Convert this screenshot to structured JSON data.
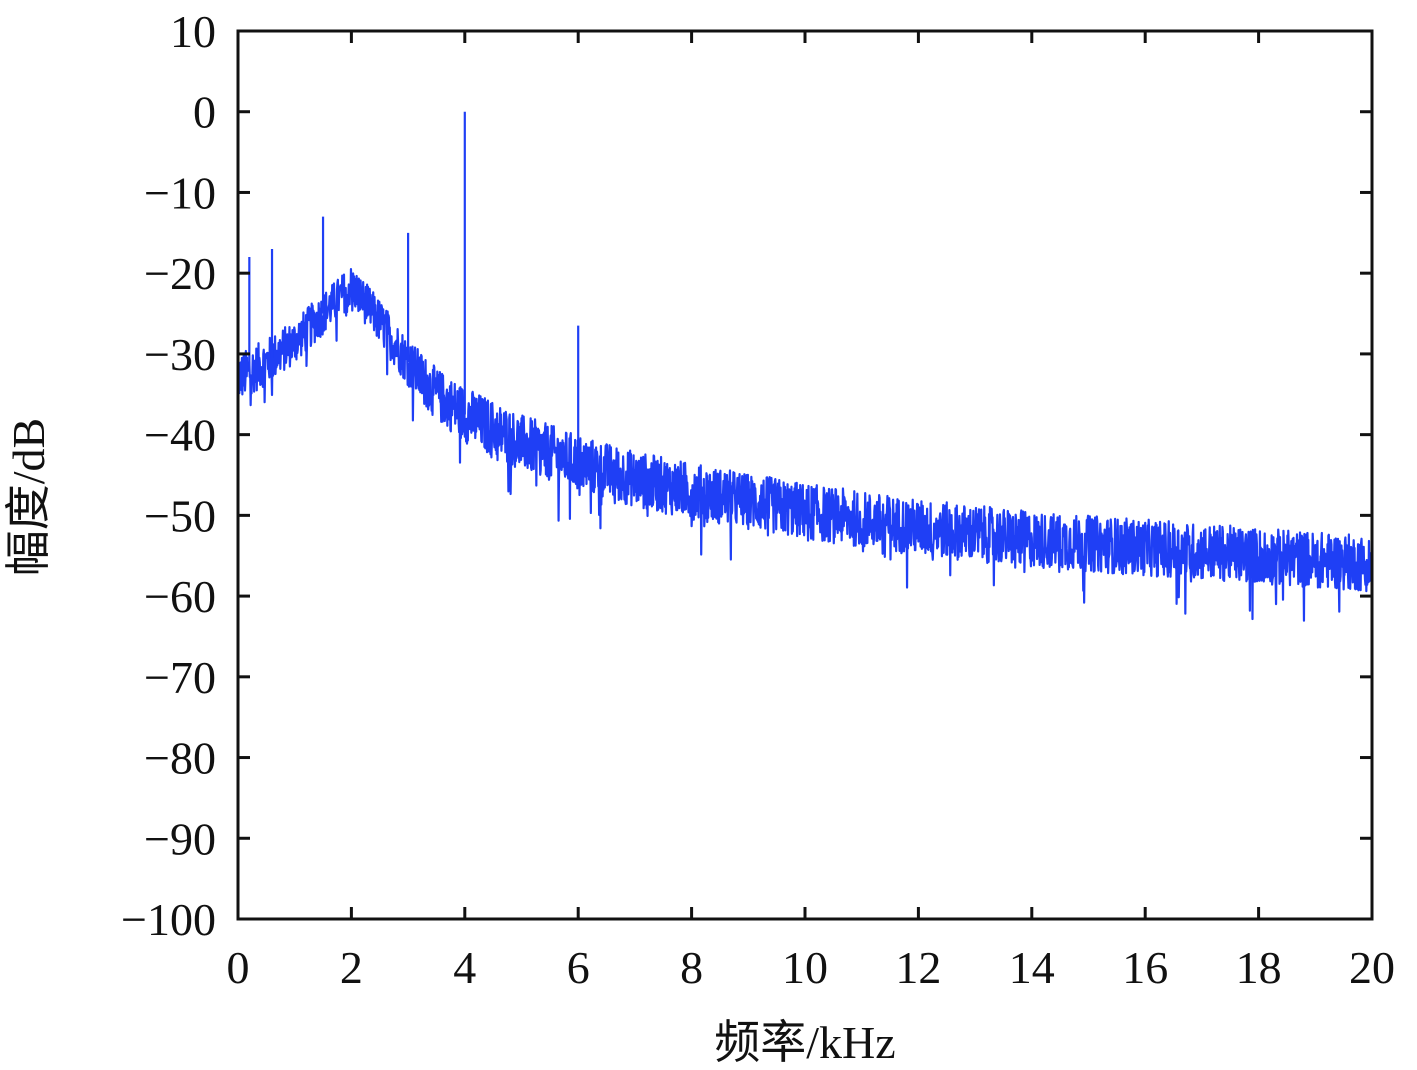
{
  "chart_data": {
    "type": "line",
    "title": "",
    "xlabel": "频率/kHz",
    "ylabel": "幅度/dB",
    "xlim": [
      0,
      20
    ],
    "ylim": [
      -100,
      10
    ],
    "xticks": [
      0,
      2,
      4,
      6,
      8,
      10,
      12,
      14,
      16,
      18,
      20
    ],
    "xtick_labels": [
      "0",
      "2",
      "4",
      "6",
      "8",
      "10",
      "12",
      "14",
      "16",
      "18",
      "20"
    ],
    "yticks": [
      10,
      0,
      -10,
      -20,
      -30,
      -40,
      -50,
      -60,
      -70,
      -80,
      -90,
      -100
    ],
    "ytick_labels": [
      "10",
      "0",
      "−10",
      "−20",
      "−30",
      "−40",
      "−50",
      "−60",
      "−70",
      "−80",
      "−90",
      "−100"
    ],
    "grid": false,
    "series": [
      {
        "color": "#1f3ff5",
        "envelope": [
          {
            "x": 0.0,
            "y": -33
          },
          {
            "x": 0.5,
            "y": -31
          },
          {
            "x": 1.0,
            "y": -28.5
          },
          {
            "x": 1.5,
            "y": -25
          },
          {
            "x": 2.0,
            "y": -21.5
          },
          {
            "x": 2.5,
            "y": -26
          },
          {
            "x": 3.0,
            "y": -31
          },
          {
            "x": 3.5,
            "y": -35
          },
          {
            "x": 4.0,
            "y": -37.5
          },
          {
            "x": 5.0,
            "y": -41
          },
          {
            "x": 6.0,
            "y": -43.5
          },
          {
            "x": 7.0,
            "y": -45.5
          },
          {
            "x": 8.0,
            "y": -47
          },
          {
            "x": 10.0,
            "y": -49.5
          },
          {
            "x": 12.0,
            "y": -51.5
          },
          {
            "x": 14.0,
            "y": -53
          },
          {
            "x": 16.0,
            "y": -54
          },
          {
            "x": 18.0,
            "y": -55
          },
          {
            "x": 20.0,
            "y": -56
          }
        ],
        "noise_band_db": [
          {
            "x": 0.0,
            "amp": 3.0
          },
          {
            "x": 2.0,
            "amp": 2.5
          },
          {
            "x": 4.0,
            "amp": 3.5
          },
          {
            "x": 20.0,
            "amp": 3.5
          }
        ],
        "peaks": [
          {
            "x": 0.2,
            "y": -18
          },
          {
            "x": 0.6,
            "y": -17
          },
          {
            "x": 1.5,
            "y": -13
          },
          {
            "x": 3.0,
            "y": -15
          },
          {
            "x": 4.0,
            "y": 0
          },
          {
            "x": 6.0,
            "y": -26.5
          }
        ]
      }
    ]
  }
}
